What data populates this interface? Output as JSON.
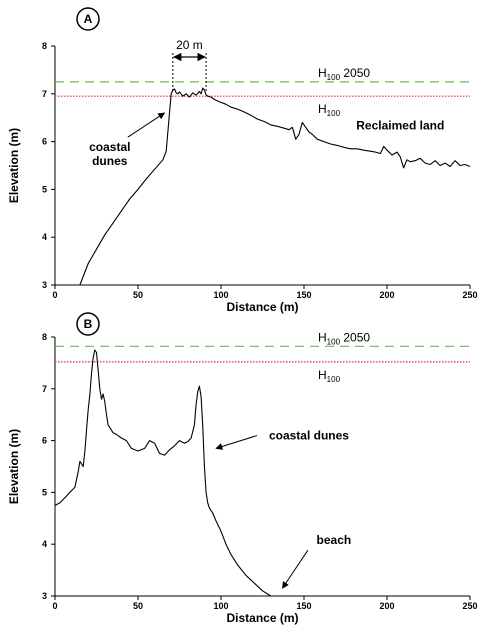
{
  "chart_data": [
    {
      "type": "line",
      "panel": "A",
      "xlabel": "Distance (m)",
      "ylabel": "Elevation (m)",
      "xlim": [
        0,
        250
      ],
      "ylim": [
        3,
        8
      ],
      "xticks": [
        0,
        50,
        100,
        150,
        200,
        250
      ],
      "yticks": [
        3,
        4,
        5,
        6,
        7,
        8
      ],
      "grid": false,
      "reference_lines": [
        {
          "label_main": "H",
          "label_sub": "100",
          "label_suffix": " 2050",
          "y": 7.25,
          "color": "#5fbf5f",
          "style": "dashed"
        },
        {
          "label_main": "H",
          "label_sub": "100",
          "label_suffix": "",
          "y": 6.95,
          "color": "#e03030",
          "style": "dotted"
        }
      ],
      "dimension": {
        "label": "20 m",
        "x_start": 71,
        "x_end": 91
      },
      "annotations": [
        {
          "text": [
            "coastal",
            "dunes"
          ],
          "x": 33,
          "y": 5.8,
          "arrow_to": [
            66,
            6.6
          ]
        },
        {
          "text": [
            "Reclaimed land"
          ],
          "x": 208,
          "y": 6.25
        }
      ],
      "series": [
        {
          "color": "#000000",
          "x": [
            15,
            20,
            25,
            30,
            35,
            40,
            45,
            50,
            55,
            60,
            65,
            67,
            69,
            70,
            71,
            72,
            73,
            74,
            75,
            77,
            79,
            81,
            83,
            85,
            87,
            88,
            89,
            90,
            91,
            92,
            94,
            96,
            98,
            100,
            103,
            106,
            110,
            114,
            118,
            122,
            126,
            130,
            134,
            138,
            141,
            143,
            145,
            147,
            149,
            151,
            153,
            155,
            158,
            162,
            166,
            170,
            174,
            178,
            182,
            186,
            190,
            193,
            196,
            198,
            200,
            203,
            206,
            208,
            210,
            212,
            214,
            217,
            220,
            223,
            226,
            229,
            232,
            235,
            238,
            241,
            244,
            247,
            250
          ],
          "y": [
            3.0,
            3.45,
            3.75,
            4.05,
            4.3,
            4.55,
            4.8,
            5.0,
            5.22,
            5.42,
            5.62,
            5.8,
            6.6,
            7.0,
            7.08,
            7.1,
            7.02,
            7.0,
            7.04,
            6.95,
            7.0,
            6.93,
            7.02,
            6.97,
            7.05,
            7.0,
            7.12,
            7.08,
            6.98,
            6.95,
            6.93,
            6.88,
            6.85,
            6.82,
            6.78,
            6.72,
            6.68,
            6.62,
            6.55,
            6.47,
            6.42,
            6.35,
            6.32,
            6.28,
            6.25,
            6.3,
            6.05,
            6.15,
            6.4,
            6.3,
            6.2,
            6.15,
            6.05,
            6.0,
            5.95,
            5.92,
            5.88,
            5.85,
            5.85,
            5.82,
            5.8,
            5.78,
            5.75,
            5.9,
            5.82,
            5.72,
            5.78,
            5.68,
            5.45,
            5.62,
            5.58,
            5.6,
            5.65,
            5.55,
            5.52,
            5.6,
            5.5,
            5.55,
            5.48,
            5.6,
            5.5,
            5.52,
            5.48
          ]
        }
      ]
    },
    {
      "type": "line",
      "panel": "B",
      "xlabel": "Distance (m)",
      "ylabel": "Elevation (m)",
      "xlim": [
        0,
        250
      ],
      "ylim": [
        3,
        8
      ],
      "xticks": [
        0,
        50,
        100,
        150,
        200,
        250
      ],
      "yticks": [
        3,
        4,
        5,
        6,
        7,
        8
      ],
      "grid": false,
      "reference_lines": [
        {
          "label_main": "H",
          "label_sub": "100",
          "label_suffix": " 2050",
          "y": 7.82,
          "color": "#5fbf5f",
          "style": "dashed"
        },
        {
          "label_main": "H",
          "label_sub": "100",
          "label_suffix": "",
          "y": 7.52,
          "color": "#e03030",
          "style": "dotted"
        }
      ],
      "annotations": [
        {
          "text": [
            "coastal dunes"
          ],
          "x": 153,
          "y": 6.02,
          "arrow_to": [
            97,
            5.85
          ]
        },
        {
          "text": [
            "beach"
          ],
          "x": 168,
          "y": 4.0,
          "arrow_to": [
            137,
            3.15
          ]
        }
      ],
      "series": [
        {
          "color": "#000000",
          "x": [
            0,
            3,
            6,
            9,
            12,
            14,
            15,
            16,
            17,
            18,
            19,
            20,
            21,
            22,
            23,
            24,
            25,
            26,
            27,
            28,
            29,
            30,
            31,
            32,
            33,
            35,
            37,
            40,
            43,
            46,
            50,
            54,
            57,
            60,
            63,
            66,
            69,
            72,
            75,
            78,
            80,
            82,
            84,
            85,
            86,
            87,
            88,
            89,
            90,
            91,
            92,
            93,
            95,
            97,
            100,
            103,
            106,
            110,
            115,
            120,
            125,
            130
          ],
          "y": [
            4.75,
            4.8,
            4.9,
            5.0,
            5.1,
            5.4,
            5.6,
            5.55,
            5.5,
            5.8,
            6.2,
            6.6,
            6.9,
            7.3,
            7.6,
            7.75,
            7.7,
            7.35,
            7.0,
            6.8,
            6.9,
            6.75,
            6.5,
            6.3,
            6.25,
            6.15,
            6.12,
            6.05,
            6.0,
            5.85,
            5.8,
            5.85,
            6.0,
            5.95,
            5.75,
            5.72,
            5.82,
            5.9,
            6.0,
            5.95,
            5.98,
            6.05,
            6.3,
            6.7,
            6.95,
            7.05,
            6.85,
            6.3,
            5.5,
            5.0,
            4.8,
            4.7,
            4.6,
            4.45,
            4.25,
            4.0,
            3.8,
            3.6,
            3.4,
            3.25,
            3.1,
            3.0
          ]
        }
      ]
    }
  ]
}
